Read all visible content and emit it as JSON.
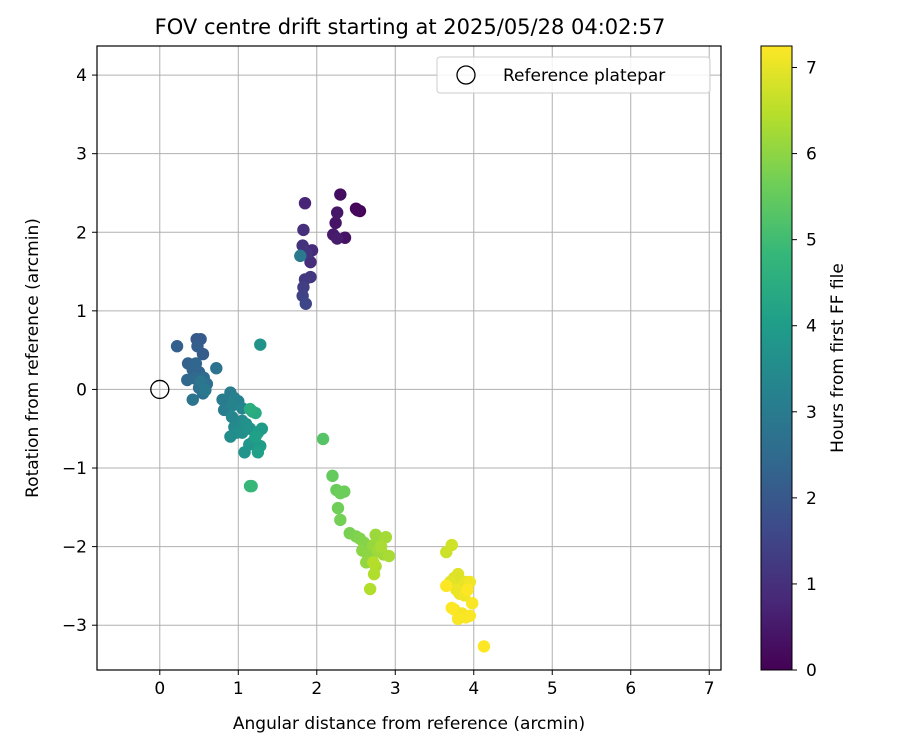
{
  "chart_data": {
    "type": "scatter",
    "title": "FOV centre drift starting at 2025/05/28 04:02:57",
    "xlabel": "Angular distance from reference (arcmin)",
    "ylabel": "Rotation from reference (arcmin)",
    "xlim": [
      -0.8,
      7.15
    ],
    "ylim": [
      -3.57,
      4.37
    ],
    "xticks": [
      "0",
      "1",
      "2",
      "3",
      "4",
      "5",
      "6",
      "7"
    ],
    "yticks": [
      "−3",
      "−2",
      "−1",
      "0",
      "1",
      "2",
      "3",
      "4"
    ],
    "grid": true,
    "legend": {
      "location": "upper right",
      "entries": [
        "Reference platepar"
      ]
    },
    "reference_point": {
      "x": 0,
      "y": 0,
      "label": "Reference platepar"
    },
    "colorbar": {
      "label": "Hours from first FF file",
      "range": [
        0,
        7.25
      ],
      "ticks": [
        "0",
        "1",
        "2",
        "3",
        "4",
        "5",
        "6",
        "7"
      ],
      "colormap": "viridis",
      "colors": [
        "#440154",
        "#482878",
        "#3e4989",
        "#31688e",
        "#26828e",
        "#1f9e89",
        "#35b779",
        "#6ece58",
        "#b5de2b",
        "#fde725"
      ]
    },
    "points": [
      {
        "x": 2.55,
        "y": 2.27,
        "h": 0.05
      },
      {
        "x": 2.5,
        "y": 2.3,
        "h": 0.1
      },
      {
        "x": 2.52,
        "y": 2.28,
        "h": 0.15
      },
      {
        "x": 2.3,
        "y": 2.48,
        "h": 0.25
      },
      {
        "x": 2.36,
        "y": 1.93,
        "h": 0.35
      },
      {
        "x": 2.24,
        "y": 2.12,
        "h": 0.4
      },
      {
        "x": 2.26,
        "y": 2.25,
        "h": 0.45
      },
      {
        "x": 2.21,
        "y": 1.97,
        "h": 0.5
      },
      {
        "x": 2.26,
        "y": 1.92,
        "h": 0.55
      },
      {
        "x": 1.85,
        "y": 2.37,
        "h": 0.75
      },
      {
        "x": 1.94,
        "y": 1.77,
        "h": 0.85
      },
      {
        "x": 1.92,
        "y": 1.62,
        "h": 0.95
      },
      {
        "x": 1.83,
        "y": 2.03,
        "h": 1.0
      },
      {
        "x": 1.82,
        "y": 1.83,
        "h": 1.05
      },
      {
        "x": 1.87,
        "y": 1.73,
        "h": 1.1
      },
      {
        "x": 1.92,
        "y": 1.43,
        "h": 1.2
      },
      {
        "x": 1.85,
        "y": 1.4,
        "h": 1.25
      },
      {
        "x": 1.83,
        "y": 1.3,
        "h": 1.35
      },
      {
        "x": 1.82,
        "y": 1.19,
        "h": 1.45
      },
      {
        "x": 1.86,
        "y": 1.09,
        "h": 1.55
      },
      {
        "x": 1.79,
        "y": 1.7,
        "h": 2.95
      },
      {
        "x": 0.47,
        "y": 0.64,
        "h": 2.0
      },
      {
        "x": 0.52,
        "y": 0.64,
        "h": 2.05
      },
      {
        "x": 0.55,
        "y": 0.45,
        "h": 2.1
      },
      {
        "x": 0.48,
        "y": 0.55,
        "h": 2.15
      },
      {
        "x": 0.22,
        "y": 0.55,
        "h": 2.2
      },
      {
        "x": 0.36,
        "y": 0.33,
        "h": 2.25
      },
      {
        "x": 0.42,
        "y": 0.25,
        "h": 2.3
      },
      {
        "x": 0.5,
        "y": 0.22,
        "h": 2.35
      },
      {
        "x": 0.46,
        "y": 0.33,
        "h": 2.4
      },
      {
        "x": 0.35,
        "y": 0.12,
        "h": 2.45
      },
      {
        "x": 0.45,
        "y": 0.14,
        "h": 2.5
      },
      {
        "x": 0.56,
        "y": 0.15,
        "h": 2.55
      },
      {
        "x": 0.6,
        "y": 0.07,
        "h": 2.6
      },
      {
        "x": 0.5,
        "y": 0.02,
        "h": 2.65
      },
      {
        "x": 0.55,
        "y": -0.05,
        "h": 2.7
      },
      {
        "x": 0.42,
        "y": -0.13,
        "h": 2.75
      },
      {
        "x": 0.72,
        "y": 0.27,
        "h": 2.8
      },
      {
        "x": 0.52,
        "y": 0.1,
        "h": 2.85
      },
      {
        "x": 0.58,
        "y": -0.01,
        "h": 2.9
      },
      {
        "x": 0.8,
        "y": -0.13,
        "h": 3.0
      },
      {
        "x": 0.9,
        "y": -0.04,
        "h": 3.05
      },
      {
        "x": 0.82,
        "y": -0.26,
        "h": 3.1
      },
      {
        "x": 0.95,
        "y": -0.11,
        "h": 3.15
      },
      {
        "x": 1.0,
        "y": -0.15,
        "h": 3.2
      },
      {
        "x": 0.93,
        "y": -0.2,
        "h": 3.25
      },
      {
        "x": 1.05,
        "y": -0.24,
        "h": 3.3
      },
      {
        "x": 0.92,
        "y": -0.35,
        "h": 3.35
      },
      {
        "x": 0.95,
        "y": -0.48,
        "h": 3.4
      },
      {
        "x": 1.05,
        "y": -0.4,
        "h": 3.45
      },
      {
        "x": 0.98,
        "y": -0.55,
        "h": 3.5
      },
      {
        "x": 0.9,
        "y": -0.6,
        "h": 3.55
      },
      {
        "x": 1.05,
        "y": -0.55,
        "h": 3.6
      },
      {
        "x": 1.1,
        "y": -0.44,
        "h": 3.65
      },
      {
        "x": 1.15,
        "y": -0.5,
        "h": 3.7
      },
      {
        "x": 1.08,
        "y": -0.8,
        "h": 3.75
      },
      {
        "x": 1.14,
        "y": -0.7,
        "h": 3.8
      },
      {
        "x": 1.2,
        "y": -0.65,
        "h": 3.85
      },
      {
        "x": 1.25,
        "y": -0.55,
        "h": 3.9
      },
      {
        "x": 1.3,
        "y": -0.5,
        "h": 3.95
      },
      {
        "x": 1.28,
        "y": -0.72,
        "h": 4.0
      },
      {
        "x": 1.25,
        "y": -0.8,
        "h": 4.05
      },
      {
        "x": 1.22,
        "y": -0.6,
        "h": 4.1
      },
      {
        "x": 1.28,
        "y": 0.57,
        "h": 3.7
      },
      {
        "x": 1.18,
        "y": -0.28,
        "h": 4.3
      },
      {
        "x": 1.22,
        "y": -0.3,
        "h": 4.4
      },
      {
        "x": 1.15,
        "y": -0.25,
        "h": 4.5
      },
      {
        "x": 1.15,
        "y": -1.23,
        "h": 4.8
      },
      {
        "x": 1.17,
        "y": -1.23,
        "h": 4.85
      },
      {
        "x": 2.08,
        "y": -0.63,
        "h": 5.3
      },
      {
        "x": 2.2,
        "y": -1.1,
        "h": 5.5
      },
      {
        "x": 2.25,
        "y": -1.28,
        "h": 5.55
      },
      {
        "x": 2.3,
        "y": -1.32,
        "h": 5.6
      },
      {
        "x": 2.35,
        "y": -1.3,
        "h": 5.6
      },
      {
        "x": 2.27,
        "y": -1.51,
        "h": 5.65
      },
      {
        "x": 2.3,
        "y": -1.66,
        "h": 5.7
      },
      {
        "x": 2.42,
        "y": -1.83,
        "h": 5.75
      },
      {
        "x": 2.5,
        "y": -1.87,
        "h": 5.8
      },
      {
        "x": 2.55,
        "y": -1.9,
        "h": 5.85
      },
      {
        "x": 2.6,
        "y": -1.95,
        "h": 5.9
      },
      {
        "x": 2.58,
        "y": -2.05,
        "h": 5.95
      },
      {
        "x": 2.65,
        "y": -2.1,
        "h": 6.0
      },
      {
        "x": 2.7,
        "y": -2.15,
        "h": 6.0
      },
      {
        "x": 2.63,
        "y": -2.2,
        "h": 6.05
      },
      {
        "x": 2.72,
        "y": -1.98,
        "h": 6.1
      },
      {
        "x": 2.75,
        "y": -1.85,
        "h": 6.15
      },
      {
        "x": 2.8,
        "y": -1.9,
        "h": 6.15
      },
      {
        "x": 2.78,
        "y": -2.05,
        "h": 6.2
      },
      {
        "x": 2.85,
        "y": -2.1,
        "h": 6.2
      },
      {
        "x": 2.88,
        "y": -1.88,
        "h": 6.25
      },
      {
        "x": 2.92,
        "y": -2.12,
        "h": 6.3
      },
      {
        "x": 2.82,
        "y": -2.0,
        "h": 6.3
      },
      {
        "x": 2.75,
        "y": -2.25,
        "h": 6.35
      },
      {
        "x": 2.73,
        "y": -2.35,
        "h": 6.4
      },
      {
        "x": 2.68,
        "y": -2.54,
        "h": 6.4
      },
      {
        "x": 2.72,
        "y": -2.2,
        "h": 6.45
      },
      {
        "x": 3.65,
        "y": -2.07,
        "h": 6.7
      },
      {
        "x": 3.72,
        "y": -1.98,
        "h": 6.75
      },
      {
        "x": 3.75,
        "y": -2.4,
        "h": 6.85
      },
      {
        "x": 3.8,
        "y": -2.35,
        "h": 6.9
      },
      {
        "x": 3.7,
        "y": -2.45,
        "h": 6.95
      },
      {
        "x": 3.85,
        "y": -2.5,
        "h": 7.0
      },
      {
        "x": 3.9,
        "y": -2.45,
        "h": 7.0
      },
      {
        "x": 3.78,
        "y": -2.55,
        "h": 7.05
      },
      {
        "x": 3.82,
        "y": -2.6,
        "h": 7.05
      },
      {
        "x": 3.88,
        "y": -2.62,
        "h": 7.1
      },
      {
        "x": 3.95,
        "y": -2.45,
        "h": 7.1
      },
      {
        "x": 3.75,
        "y": -2.8,
        "h": 7.15
      },
      {
        "x": 3.85,
        "y": -2.85,
        "h": 7.15
      },
      {
        "x": 3.8,
        "y": -2.92,
        "h": 7.2
      },
      {
        "x": 3.9,
        "y": -2.9,
        "h": 7.2
      },
      {
        "x": 3.95,
        "y": -2.88,
        "h": 7.2
      },
      {
        "x": 3.98,
        "y": -2.72,
        "h": 7.2
      },
      {
        "x": 3.72,
        "y": -2.78,
        "h": 7.25
      },
      {
        "x": 3.65,
        "y": -2.5,
        "h": 7.25
      },
      {
        "x": 3.92,
        "y": -2.55,
        "h": 7.25
      },
      {
        "x": 4.13,
        "y": -3.27,
        "h": 7.25
      }
    ]
  }
}
